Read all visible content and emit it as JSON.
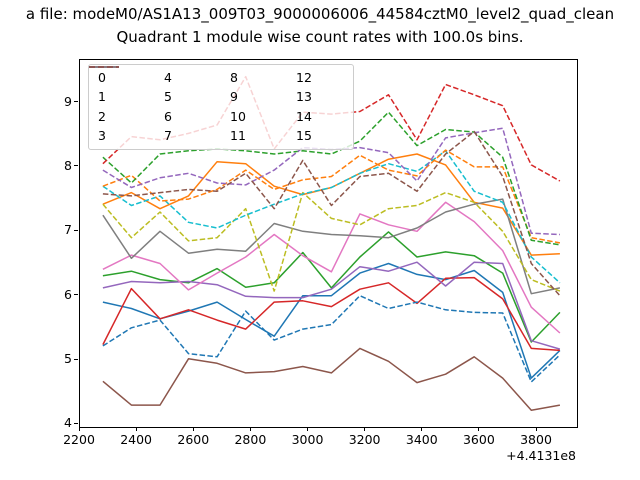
{
  "figure": {
    "title_line": "a file: modeM0/AS1A13_009T03_9000006006_44584cztM0_level2_quad_clean",
    "subtitle": "Quadrant 1 module wise count rates with 100.0s bins."
  },
  "chart_data": {
    "type": "line",
    "title": "Quadrant 1 module wise count rates with 100.0s bins.",
    "xlabel": "",
    "ylabel": "",
    "x_offset_label": "+4.4131e8",
    "xlim": [
      2200,
      3940
    ],
    "ylim": [
      3.96,
      9.66
    ],
    "xticks": [
      2200,
      2400,
      2600,
      2800,
      3000,
      3200,
      3400,
      3600,
      3800
    ],
    "yticks": [
      4,
      5,
      6,
      7,
      8,
      9
    ],
    "grid": false,
    "legend_position": "upper-left",
    "legend_columns": 4,
    "x": [
      2280,
      2380,
      2480,
      2580,
      2680,
      2780,
      2880,
      2980,
      3080,
      3180,
      3280,
      3380,
      3480,
      3580,
      3680,
      3780,
      3880
    ],
    "series": [
      {
        "name": "0",
        "color": "#1f77b4",
        "dash": "solid",
        "values": [
          5.9,
          5.8,
          5.64,
          5.76,
          5.9,
          5.63,
          5.37,
          6.0,
          6.0,
          6.35,
          6.5,
          6.33,
          6.25,
          6.39,
          6.05,
          4.72,
          5.15
        ]
      },
      {
        "name": "1",
        "color": "#ff7f0e",
        "dash": "solid",
        "values": [
          7.42,
          7.6,
          7.35,
          7.55,
          8.08,
          8.05,
          7.7,
          7.57,
          7.68,
          7.9,
          8.12,
          8.2,
          8.03,
          7.45,
          7.36,
          6.63,
          6.65
        ]
      },
      {
        "name": "2",
        "color": "#2ca02c",
        "dash": "solid",
        "values": [
          6.31,
          6.38,
          6.25,
          6.2,
          6.42,
          6.13,
          6.2,
          6.67,
          6.12,
          6.6,
          6.99,
          6.6,
          6.68,
          6.62,
          6.35,
          5.28,
          5.74
        ]
      },
      {
        "name": "3",
        "color": "#d62728",
        "dash": "solid",
        "values": [
          5.24,
          6.11,
          5.64,
          5.78,
          5.62,
          5.48,
          5.9,
          5.92,
          5.83,
          6.1,
          6.2,
          5.88,
          6.27,
          6.28,
          5.95,
          5.18,
          5.15
        ]
      },
      {
        "name": "4",
        "color": "#9467bd",
        "dash": "solid",
        "values": [
          6.12,
          6.22,
          6.2,
          6.22,
          6.17,
          5.99,
          5.97,
          5.97,
          6.1,
          6.45,
          6.38,
          6.52,
          6.15,
          6.52,
          6.5,
          5.3,
          5.17
        ]
      },
      {
        "name": "5",
        "color": "#8c564b",
        "dash": "solid",
        "values": [
          4.67,
          4.3,
          4.3,
          5.02,
          4.95,
          4.8,
          4.82,
          4.9,
          4.8,
          5.18,
          4.98,
          4.65,
          4.78,
          5.05,
          4.72,
          4.22,
          4.3
        ]
      },
      {
        "name": "6",
        "color": "#e377c2",
        "dash": "solid",
        "values": [
          6.41,
          6.63,
          6.5,
          6.09,
          6.35,
          6.6,
          6.95,
          6.62,
          6.37,
          7.27,
          7.1,
          7.0,
          7.45,
          7.15,
          6.7,
          5.82,
          5.42
        ]
      },
      {
        "name": "7",
        "color": "#7f7f7f",
        "dash": "solid",
        "values": [
          7.25,
          6.58,
          7.0,
          6.66,
          6.72,
          6.69,
          7.12,
          7.0,
          6.95,
          6.93,
          6.9,
          7.05,
          7.3,
          7.42,
          7.5,
          6.03,
          6.12
        ]
      },
      {
        "name": "8",
        "color": "#bcbd22",
        "dash": "dashed",
        "values": [
          7.42,
          6.9,
          7.3,
          6.85,
          6.9,
          7.35,
          6.07,
          7.6,
          7.2,
          7.1,
          7.35,
          7.4,
          7.6,
          7.45,
          7.0,
          6.25,
          6.07
        ]
      },
      {
        "name": "9",
        "color": "#17becf",
        "dash": "dashed",
        "values": [
          7.7,
          7.4,
          7.55,
          7.14,
          7.05,
          7.25,
          7.42,
          7.58,
          7.68,
          7.9,
          8.05,
          7.93,
          8.25,
          7.62,
          7.45,
          6.6,
          6.2
        ]
      },
      {
        "name": "10",
        "color": "#1f77b4",
        "dash": "dashed",
        "values": [
          5.22,
          5.5,
          5.62,
          5.1,
          5.05,
          5.76,
          5.31,
          5.48,
          5.55,
          6.0,
          5.8,
          5.9,
          5.78,
          5.74,
          5.73,
          4.66,
          5.08
        ]
      },
      {
        "name": "11",
        "color": "#ff7f0e",
        "dash": "dashed",
        "values": [
          7.7,
          7.87,
          7.47,
          7.5,
          7.65,
          7.95,
          7.65,
          7.8,
          7.85,
          8.18,
          7.95,
          7.86,
          8.26,
          8.0,
          8.0,
          6.9,
          6.82
        ]
      },
      {
        "name": "12",
        "color": "#2ca02c",
        "dash": "dashed",
        "values": [
          8.15,
          7.75,
          8.2,
          8.25,
          8.28,
          8.25,
          8.2,
          8.25,
          8.2,
          8.4,
          8.85,
          8.33,
          8.58,
          8.54,
          8.15,
          6.86,
          6.79
        ]
      },
      {
        "name": "13",
        "color": "#d62728",
        "dash": "dashed",
        "values": [
          8.05,
          8.47,
          8.42,
          8.52,
          8.65,
          9.4,
          8.28,
          8.85,
          8.82,
          8.86,
          9.12,
          8.42,
          9.28,
          9.12,
          8.95,
          8.03,
          7.78
        ]
      },
      {
        "name": "14",
        "color": "#9467bd",
        "dash": "dashed",
        "values": [
          7.95,
          7.68,
          7.83,
          7.9,
          7.75,
          7.72,
          7.95,
          8.3,
          8.27,
          8.3,
          8.22,
          7.78,
          8.45,
          8.53,
          8.6,
          6.97,
          6.95
        ]
      },
      {
        "name": "15",
        "color": "#8c564b",
        "dash": "dashed",
        "values": [
          7.58,
          7.55,
          7.6,
          7.65,
          7.62,
          7.9,
          7.35,
          8.1,
          7.4,
          7.85,
          7.9,
          7.62,
          8.2,
          8.55,
          7.85,
          6.5,
          6.0
        ]
      }
    ]
  }
}
